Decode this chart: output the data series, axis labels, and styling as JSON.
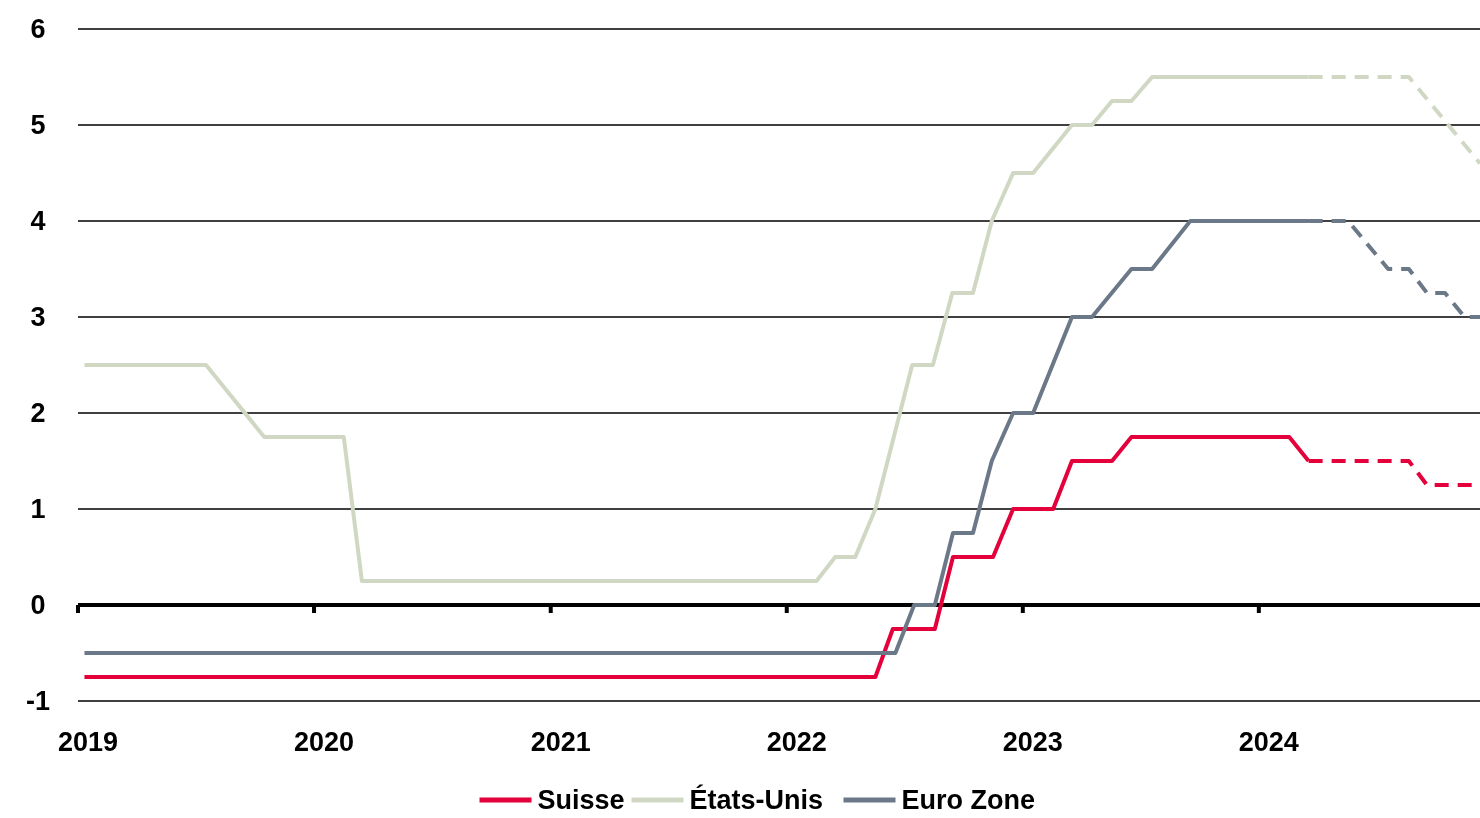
{
  "chart_data": {
    "type": "line",
    "xlim": [
      "2019-01-01",
      "2024-12-08"
    ],
    "xticks": [
      {
        "value": "2019-01-01",
        "label": "2019"
      },
      {
        "value": "2020-01-01",
        "label": "2020"
      },
      {
        "value": "2021-01-01",
        "label": "2021"
      },
      {
        "value": "2022-01-01",
        "label": "2022"
      },
      {
        "value": "2023-01-01",
        "label": "2023"
      },
      {
        "value": "2024-01-01",
        "label": "2024"
      }
    ],
    "ylim": [
      -1,
      6
    ],
    "yticks": [
      -1,
      0,
      1,
      2,
      3,
      4,
      5,
      6
    ],
    "grid": "y",
    "legend": "bottom",
    "line_style": "solid",
    "marker": "none",
    "series": [
      {
        "name": "Suisse",
        "color": "#e4003a",
        "x": [
          "2019-01-11",
          "2022-05-18",
          "2022-06-14",
          "2022-08-18",
          "2022-09-15",
          "2022-11-16",
          "2022-12-17",
          "2023-02-17",
          "2023-03-18",
          "2023-05-19",
          "2023-06-18",
          "2024-02-17",
          "2024-03-18"
        ],
        "values": [
          -0.75,
          -0.75,
          -0.25,
          -0.25,
          0.5,
          0.5,
          1.0,
          1.0,
          1.5,
          1.5,
          1.75,
          1.75,
          1.5
        ]
      },
      {
        "name": "États-Unis",
        "color": "#d0d8c4",
        "x": [
          "2019-01-11",
          "2019-07-18",
          "2019-10-16",
          "2020-02-16",
          "2020-03-15",
          "2022-02-16",
          "2022-03-17",
          "2022-04-17",
          "2022-05-18",
          "2022-07-14",
          "2022-08-15",
          "2022-09-14",
          "2022-10-16",
          "2022-11-14",
          "2022-12-17",
          "2023-01-17",
          "2023-03-18",
          "2023-04-18",
          "2023-05-19",
          "2023-06-18",
          "2023-07-20",
          "2024-03-18"
        ],
        "values": [
          2.5,
          2.5,
          1.75,
          1.75,
          0.25,
          0.25,
          0.5,
          0.5,
          1.0,
          2.5,
          2.5,
          3.25,
          3.25,
          4.0,
          4.5,
          4.5,
          5.0,
          5.0,
          5.25,
          5.25,
          5.5,
          5.5
        ]
      },
      {
        "name": "Euro Zone",
        "color": "#6b7887",
        "x": [
          "2019-01-11",
          "2022-06-18",
          "2022-07-17",
          "2022-08-18",
          "2022-09-15",
          "2022-10-16",
          "2022-11-14",
          "2022-12-17",
          "2023-01-17",
          "2023-03-18",
          "2023-04-18",
          "2023-06-18",
          "2023-07-20",
          "2023-09-17",
          "2024-03-18"
        ],
        "values": [
          -0.5,
          -0.5,
          0.0,
          0.0,
          0.75,
          0.75,
          1.5,
          2.0,
          2.0,
          3.0,
          3.0,
          3.5,
          3.5,
          4.0,
          4.0
        ]
      },
      {
        "color": "#e4003a",
        "line_style": "dashed",
        "x": [
          "2024-03-18",
          "2024-08-20",
          "2024-09-17",
          "2024-12-08"
        ],
        "values": [
          1.5,
          1.5,
          1.25,
          1.25
        ]
      },
      {
        "color": "#d0d8c4",
        "line_style": "dashed",
        "x": [
          "2024-03-18",
          "2024-08-20",
          "2024-12-08"
        ],
        "values": [
          5.5,
          5.5,
          4.6
        ]
      },
      {
        "color": "#6b7887",
        "line_style": "dashed",
        "x": [
          "2024-03-18",
          "2024-05-18",
          "2024-07-19",
          "2024-08-20",
          "2024-09-17",
          "2024-10-15",
          "2024-11-14",
          "2024-12-08"
        ],
        "values": [
          4.0,
          4.0,
          3.5,
          3.5,
          3.25,
          3.25,
          3.0,
          3.0
        ]
      }
    ]
  }
}
